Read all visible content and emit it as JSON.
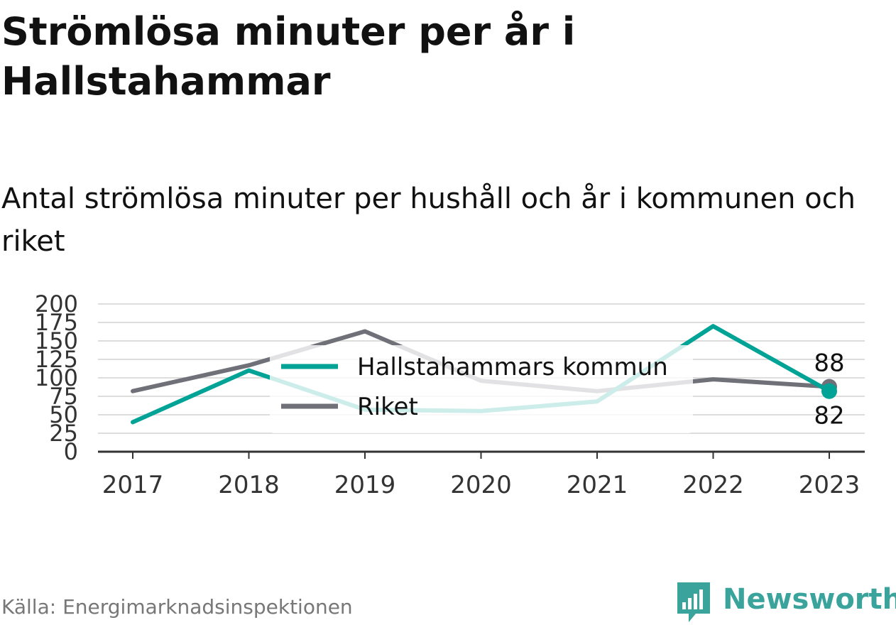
{
  "title": "Strömlösa minuter per år i Hallstahammar",
  "subtitle": "Antal strömlösa minuter per hushåll och år i kommunen och riket",
  "source": "Källa: Energimarknadsinspektionen",
  "brand": "Newsworthy",
  "colors": {
    "kommun": "#00a396",
    "riket": "#707079",
    "brand": "#3aa39c"
  },
  "chart_data": {
    "type": "line",
    "x": [
      "2017",
      "2018",
      "2019",
      "2020",
      "2021",
      "2022",
      "2023"
    ],
    "yticks": [
      "0",
      "25",
      "50",
      "75",
      "100",
      "125",
      "150",
      "175",
      "200"
    ],
    "ylim": [
      0,
      200
    ],
    "grid": true,
    "legend_position": "center",
    "series": [
      {
        "name": "Hallstahammars kommun",
        "values": [
          40,
          110,
          57,
          55,
          68,
          170,
          82
        ],
        "end_label": "82"
      },
      {
        "name": "Riket",
        "values": [
          82,
          117,
          163,
          96,
          82,
          98,
          88
        ],
        "end_label": "88"
      }
    ]
  }
}
